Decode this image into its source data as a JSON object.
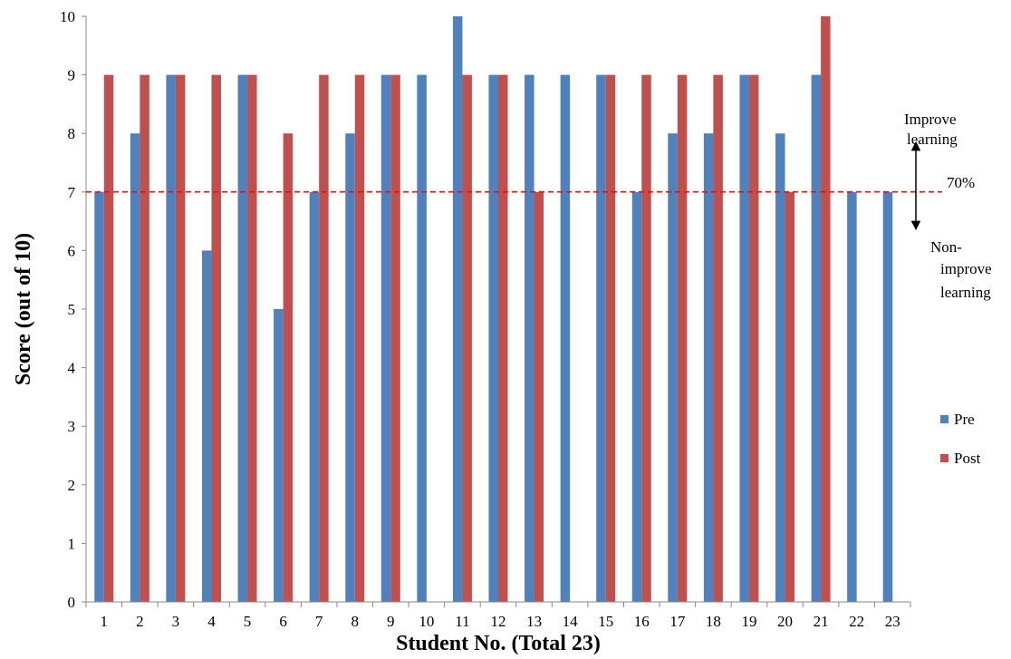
{
  "chart_data": {
    "type": "bar",
    "title": "",
    "xlabel": "Student No. (Total 23)",
    "ylabel": "Score (out of 10)",
    "categories": [
      "1",
      "2",
      "3",
      "4",
      "5",
      "6",
      "7",
      "8",
      "9",
      "10",
      "11",
      "12",
      "13",
      "14",
      "15",
      "16",
      "17",
      "18",
      "19",
      "20",
      "21",
      "22",
      "23"
    ],
    "series": [
      {
        "name": "Pre",
        "color": "#4F81BD",
        "values": [
          7,
          8,
          9,
          6,
          9,
          5,
          7,
          8,
          9,
          9,
          10,
          9,
          9,
          9,
          9,
          7,
          8,
          8,
          9,
          8,
          9,
          7,
          7
        ]
      },
      {
        "name": "Post",
        "color": "#C0504D",
        "values": [
          9,
          9,
          9,
          9,
          9,
          8,
          9,
          9,
          9,
          0,
          9,
          9,
          7,
          0,
          9,
          9,
          9,
          9,
          9,
          7,
          10,
          0,
          0
        ]
      }
    ],
    "ylim": [
      0,
      10
    ],
    "yticks": [
      0,
      1,
      2,
      3,
      4,
      5,
      6,
      7,
      8,
      9,
      10
    ],
    "grid": false,
    "legend_position": "right",
    "threshold": {
      "value": 7,
      "label": "70%",
      "color": "#FF0000",
      "style": "dashed"
    },
    "annotations": {
      "above": [
        "Improve",
        "learning"
      ],
      "below": [
        "Non-",
        "improve",
        "learning"
      ]
    }
  }
}
